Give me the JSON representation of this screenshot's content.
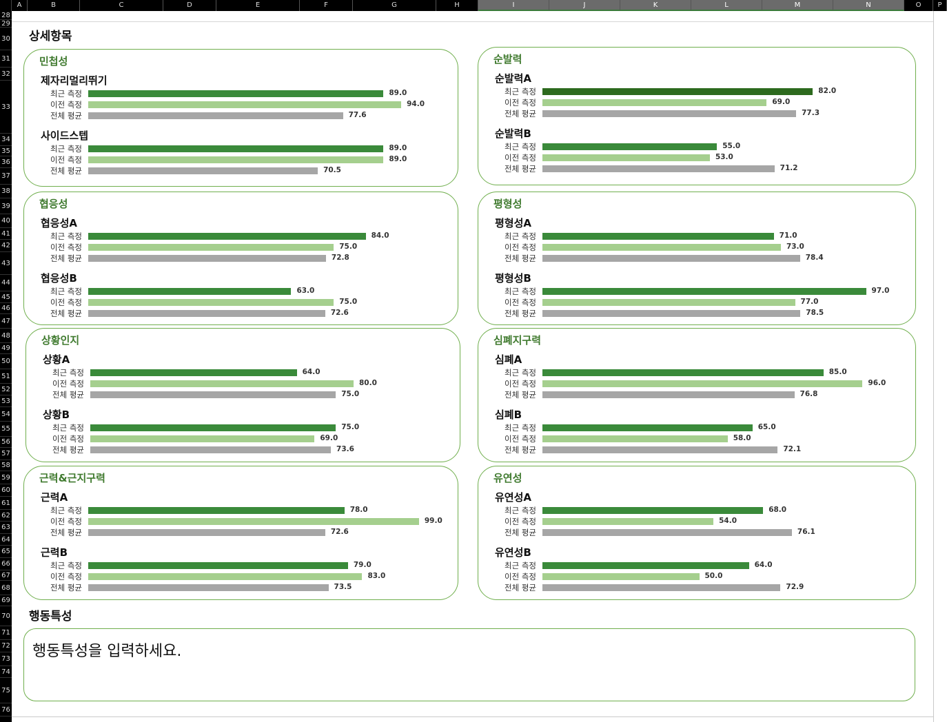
{
  "sheet": {
    "columns": [
      "A",
      "B",
      "C",
      "D",
      "E",
      "F",
      "G",
      "H",
      "I",
      "J",
      "K",
      "L",
      "M",
      "N",
      "O",
      "P"
    ],
    "rows": [
      "28",
      "29",
      "30",
      "31",
      "32",
      "33",
      "34",
      "35",
      "36",
      "37",
      "38",
      "39",
      "40",
      "41",
      "42",
      "43",
      "44",
      "45",
      "46",
      "47",
      "48",
      "49",
      "50",
      "51",
      "52",
      "53",
      "54",
      "55",
      "56",
      "57",
      "58",
      "59",
      "60",
      "61",
      "62",
      "63",
      "64",
      "65",
      "66",
      "67",
      "68",
      "69",
      "70",
      "71",
      "72",
      "73",
      "74",
      "75",
      "76"
    ]
  },
  "colors": {
    "recent": "#3a8a3a",
    "recent_dark": "#2d6a1e",
    "previous": "#a5cf8e",
    "average": "#a6a6a6",
    "panel_border": "#6fae4c",
    "panel_title": "#3f7a2e"
  },
  "labels": {
    "recent": "최근 측정",
    "previous": "이전 측정",
    "average": "전체 평균"
  },
  "detail_title": "상세항목",
  "behavior_title": "행동특성",
  "behavior_text": "행동특성을 입력하세요.",
  "panels": [
    {
      "title": "민첩성",
      "items": [
        {
          "name": "제자리멀리뛰기",
          "recent": "89.0",
          "previous": "94.0",
          "average": "77.6"
        },
        {
          "name": "사이드스텝",
          "recent": "89.0",
          "previous": "89.0",
          "average": "70.5"
        }
      ]
    },
    {
      "title": "순발력",
      "items": [
        {
          "name": "순발력A",
          "recent": "82.0",
          "previous": "69.0",
          "average": "77.3"
        },
        {
          "name": "순발력B",
          "recent": "55.0",
          "previous": "53.0",
          "average": "71.2"
        }
      ]
    },
    {
      "title": "협응성",
      "items": [
        {
          "name": "협응성A",
          "recent": "84.0",
          "previous": "75.0",
          "average": "72.8"
        },
        {
          "name": "협응성B",
          "recent": "63.0",
          "previous": "75.0",
          "average": "72.6"
        }
      ]
    },
    {
      "title": "평형성",
      "items": [
        {
          "name": "평형성A",
          "recent": "71.0",
          "previous": "73.0",
          "average": "78.4"
        },
        {
          "name": "평형성B",
          "recent": "97.0",
          "previous": "77.0",
          "average": "78.5"
        }
      ]
    },
    {
      "title": "상황인지",
      "items": [
        {
          "name": "상황A",
          "recent": "64.0",
          "previous": "80.0",
          "average": "75.0"
        },
        {
          "name": "상황B",
          "recent": "75.0",
          "previous": "69.0",
          "average": "73.6"
        }
      ]
    },
    {
      "title": "심폐지구력",
      "items": [
        {
          "name": "심폐A",
          "recent": "85.0",
          "previous": "96.0",
          "average": "76.8"
        },
        {
          "name": "심폐B",
          "recent": "65.0",
          "previous": "58.0",
          "average": "72.1"
        }
      ]
    },
    {
      "title": "근력&근지구력",
      "items": [
        {
          "name": "근력A",
          "recent": "78.0",
          "previous": "99.0",
          "average": "72.6"
        },
        {
          "name": "근력B",
          "recent": "79.0",
          "previous": "83.0",
          "average": "73.5"
        }
      ]
    },
    {
      "title": "유연성",
      "items": [
        {
          "name": "유연성A",
          "recent": "68.0",
          "previous": "54.0",
          "average": "76.1"
        },
        {
          "name": "유연성B",
          "recent": "64.0",
          "previous": "50.0",
          "average": "72.9"
        }
      ]
    }
  ]
}
